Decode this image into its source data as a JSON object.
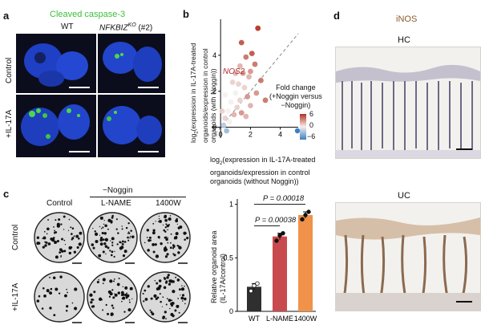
{
  "panels": {
    "a": {
      "label": "a",
      "title": "Cleaved caspase-3",
      "title_color": "#3bbf3b",
      "col_wt": "WT",
      "col_ko_main": "NFKBIZ",
      "col_ko_sup": "KO",
      "col_ko_suffix": " (#2)",
      "row_control": "Control",
      "row_il17": "+IL-17A"
    },
    "b": {
      "label": "b",
      "annotation": "NOS2",
      "annotation_color": "#b03030",
      "ylabel_prefix": "log",
      "ylabel_sub": "2",
      "ylabel_rest": "(expression in IL-17A-treated",
      "ylabel_line2": "organoids/expression in control",
      "ylabel_line3": "organoids (with Noggin))",
      "xlabel_prefix": "log",
      "xlabel_sub": "2",
      "xlabel_rest": "(expression in IL-17A-treated",
      "xlabel_line2": "organoids/expression in control",
      "xlabel_line3": "organoids (without Noggin))",
      "legend_title1": "Fold change",
      "legend_title2": "(+Noggin versus",
      "legend_title3": "−Noggin)",
      "legend_ticks": [
        "6",
        "0",
        "−6"
      ]
    },
    "c": {
      "label": "c",
      "group_header": "−Noggin",
      "col_control": "Control",
      "col_lname": "L-NAME",
      "col_1400w": "1400W",
      "row_control": "Control",
      "row_il17": "+IL-17A",
      "p1": "P = 0.00038",
      "p2": "P = 0.00018",
      "ylabel1": "Relative organoid area",
      "ylabel2": "(IL-17A/control)"
    },
    "d": {
      "label": "d",
      "title": "iNOS",
      "title_color": "#8a5a2b",
      "hc": "HC",
      "uc": "UC"
    }
  },
  "chart_data": [
    {
      "type": "scatter",
      "panel": "b",
      "xlabel": "log2(expression in IL-17A-treated organoids/expression in control organoids (without Noggin))",
      "ylabel": "log2(expression in IL-17A-treated organoids/expression in control organoids (with Noggin))",
      "xlim": [
        -0.6,
        5.2
      ],
      "ylim": [
        -0.6,
        6.0
      ],
      "x_ticks": [
        0,
        2,
        4
      ],
      "y_ticks": [
        0,
        2,
        4
      ],
      "colorscale": {
        "min": -6,
        "max": 6,
        "colors": [
          "#3b7fc4",
          "#f4f0ee",
          "#b3311f"
        ]
      },
      "diagonal": true,
      "points": [
        {
          "x": 2.5,
          "y": 5.5,
          "c": 6
        },
        {
          "x": 1.4,
          "y": 4.7,
          "c": 5
        },
        {
          "x": 2.1,
          "y": 4.1,
          "c": 5
        },
        {
          "x": 2.3,
          "y": 3.5,
          "c": 4
        },
        {
          "x": 1.7,
          "y": 3.9,
          "c": 4
        },
        {
          "x": 1.3,
          "y": 3.4,
          "c": 2
        },
        {
          "x": 1.0,
          "y": 3.0,
          "c": 2
        },
        {
          "x": 1.5,
          "y": 3.0,
          "c": 3
        },
        {
          "x": 2.0,
          "y": 3.1,
          "c": 3
        },
        {
          "x": 1.2,
          "y": 2.4,
          "c": 1
        },
        {
          "x": 1.6,
          "y": 2.2,
          "c": 1
        },
        {
          "x": 0.8,
          "y": 2.5,
          "c": 1
        },
        {
          "x": 2.7,
          "y": 2.6,
          "c": 4
        },
        {
          "x": 1.9,
          "y": 2.8,
          "c": 2
        },
        {
          "x": 1.0,
          "y": 1.9,
          "c": 0
        },
        {
          "x": 1.3,
          "y": 1.5,
          "c": 1
        },
        {
          "x": 1.8,
          "y": 1.7,
          "c": 3
        },
        {
          "x": 2.4,
          "y": 1.9,
          "c": 3
        },
        {
          "x": 0.7,
          "y": 1.4,
          "c": 0
        },
        {
          "x": 1.1,
          "y": 1.1,
          "c": 1
        },
        {
          "x": 0.5,
          "y": 0.9,
          "c": 0
        },
        {
          "x": 0.9,
          "y": 0.7,
          "c": 2
        },
        {
          "x": 1.4,
          "y": 0.8,
          "c": 3
        },
        {
          "x": 0.3,
          "y": 0.5,
          "c": 1
        },
        {
          "x": 0.6,
          "y": 0.3,
          "c": 0
        },
        {
          "x": 2.0,
          "y": 1.2,
          "c": 2
        },
        {
          "x": 0.2,
          "y": 0.1,
          "c": -2
        },
        {
          "x": 0.4,
          "y": -0.2,
          "c": -3
        },
        {
          "x": 0.1,
          "y": 0.9,
          "c": 1
        },
        {
          "x": 1.7,
          "y": 0.6,
          "c": 2
        },
        {
          "x": 3.0,
          "y": 1.5,
          "c": 4
        },
        {
          "x": 0.3,
          "y": 1.8,
          "c": 0
        }
      ]
    },
    {
      "type": "bar",
      "panel": "c",
      "categories": [
        "WT",
        "L-NAME",
        "1400W"
      ],
      "values": [
        0.23,
        0.7,
        0.9
      ],
      "errors": [
        0.03,
        0.03,
        0.03
      ],
      "colors": [
        "#2f2f2f",
        "#c94a4e",
        "#f0924a"
      ],
      "points": [
        [
          0.19,
          0.24,
          0.26
        ],
        [
          0.66,
          0.71,
          0.73
        ],
        [
          0.86,
          0.9,
          0.93
        ]
      ],
      "ylabel": "Relative organoid area (IL-17A/control)",
      "ylim": [
        0,
        1.05
      ],
      "y_ticks": [
        0,
        0.5,
        1
      ]
    }
  ]
}
